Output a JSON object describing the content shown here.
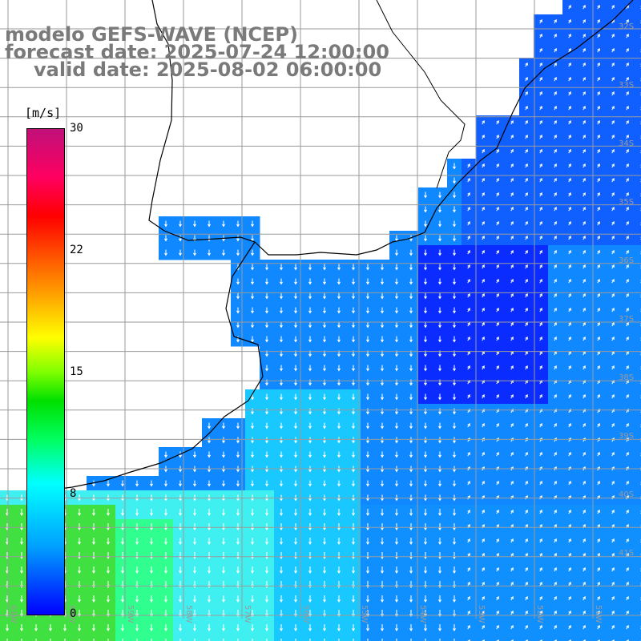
{
  "title": {
    "line1": "modelo GEFS-WAVE (NCEP)",
    "line2": "forecast date: 2025-07-24 12:00:00",
    "line3": "valid date: 2025-08-02 06:00:00"
  },
  "colorbar": {
    "unit": "[m/s]",
    "ticks": [
      "30",
      "22",
      "15",
      "8",
      "0"
    ],
    "colors": [
      "#0000ff",
      "#00a0ff",
      "#00ffff",
      "#00ff60",
      "#00e000",
      "#ffff00",
      "#ff5000",
      "#ff0000",
      "#c0107a"
    ]
  },
  "grid": {
    "lon_labels": [
      "61W",
      "60W",
      "59W",
      "58W",
      "57W",
      "56W",
      "55W",
      "54W",
      "53W",
      "52W",
      "51W"
    ],
    "lat_labels": [
      "32S",
      "33S",
      "34S",
      "35S",
      "36S",
      "37S",
      "38S",
      "39S",
      "40S",
      "41S"
    ]
  },
  "colors": {
    "land": "#ffffff",
    "grid": "#999999",
    "coast": "#000000",
    "title": "#7a7a7a"
  }
}
